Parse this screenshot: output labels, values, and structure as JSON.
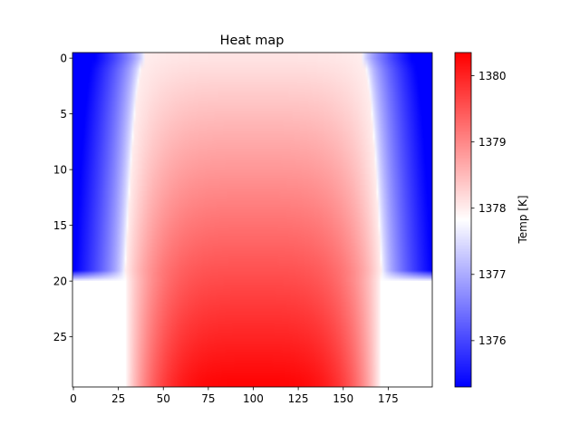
{
  "chart_data": {
    "type": "heatmap",
    "title": "Heat map",
    "xlabel": "",
    "ylabel": "",
    "x_range": [
      -0.5,
      199.5
    ],
    "y_range": [
      -0.5,
      29.5
    ],
    "y_inverted": true,
    "x_ticks": [
      0,
      25,
      50,
      75,
      100,
      125,
      150,
      175
    ],
    "y_ticks": [
      0,
      5,
      10,
      15,
      20,
      25
    ],
    "colormap": "bwr",
    "colorbar": {
      "label": "Temp [K]",
      "vmin": 1375.3,
      "vmax": 1380.35,
      "ticks": [
        1376,
        1377,
        1378,
        1379,
        1380
      ]
    },
    "field": {
      "rows": 30,
      "cols": 200,
      "center_col": 100,
      "upper_rows": 20,
      "upper_edge_col_at_row0": 40,
      "upper_edge_col_at_row19": 29,
      "lower_edge_cols": [
        30,
        169
      ],
      "temp_center_row0": 1378.1,
      "temp_center_row29": 1380.3,
      "temp_outer_min": 1375.3,
      "temp_at_edge": 1378.0,
      "lower_outside": "blank"
    },
    "grid": false
  }
}
